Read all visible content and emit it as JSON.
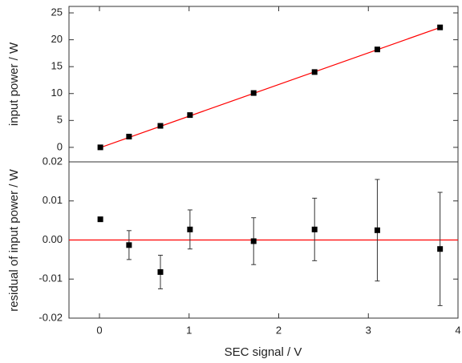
{
  "chart_data": [
    {
      "type": "scatter",
      "ylabel": "input power / W",
      "x": [
        0.01,
        0.33,
        0.68,
        1.01,
        1.72,
        2.4,
        3.1,
        3.8
      ],
      "series": [
        {
          "values": [
            0,
            2,
            4,
            6,
            10.1,
            14,
            18.2,
            22.3
          ],
          "color": "#000000"
        }
      ],
      "fit": {
        "x": [
          0,
          3.82
        ],
        "values": [
          -0.1,
          22.4
        ],
        "color": "#ff0000"
      },
      "xlim": [
        -0.34,
        4.0
      ],
      "ylim": [
        -2.7,
        26.2
      ],
      "yticks": [
        0,
        5,
        10,
        15,
        20,
        25
      ]
    },
    {
      "type": "scatter",
      "xlabel": "SEC signal / V",
      "ylabel": "residual of input power / W",
      "x": [
        0.01,
        0.33,
        0.68,
        1.01,
        1.72,
        2.4,
        3.1,
        3.8
      ],
      "series": [
        {
          "values": [
            0.0053,
            -0.0013,
            -0.0082,
            0.0027,
            -0.0003,
            0.0027,
            0.0025,
            -0.0023
          ],
          "errors": [
            0,
            0.0037,
            0.0043,
            0.005,
            0.006,
            0.008,
            0.013,
            0.0145
          ],
          "color": "#000000"
        }
      ],
      "hline": {
        "value": 0,
        "color": "#ff0000"
      },
      "xlim": [
        -0.34,
        4.0
      ],
      "xticks": [
        0,
        1,
        2,
        3,
        4
      ],
      "ylim": [
        -0.02,
        0.02
      ],
      "yticks": [
        -0.02,
        -0.01,
        {
          "value": 0,
          "label": "0.00"
        },
        0.01,
        0.02
      ]
    }
  ]
}
